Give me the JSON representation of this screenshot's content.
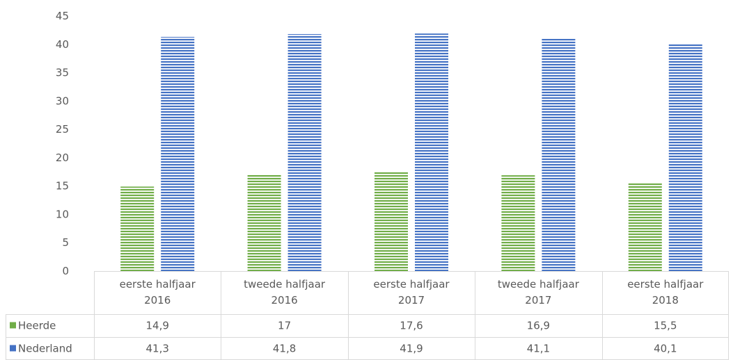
{
  "chart_data": {
    "type": "bar",
    "categories": [
      [
        "eerste halfjaar",
        "2016"
      ],
      [
        "tweede halfjaar",
        "2016"
      ],
      [
        "eerste halfjaar",
        "2017"
      ],
      [
        "tweede halfjaar",
        "2017"
      ],
      [
        "eerste halfjaar",
        "2018"
      ]
    ],
    "series": [
      {
        "name": "Heerde",
        "values": [
          14.9,
          17,
          17.6,
          16.9,
          15.5
        ],
        "labels": [
          "14,9",
          "17",
          "17,6",
          "16,9",
          "15,5"
        ],
        "color": "#70ad47"
      },
      {
        "name": "Nederland",
        "values": [
          41.3,
          41.8,
          41.9,
          41.1,
          40.1
        ],
        "labels": [
          "41,3",
          "41,8",
          "41,9",
          "41,1",
          "40,1"
        ],
        "color": "#4472c4"
      }
    ],
    "title": "",
    "xlabel": "",
    "ylabel": "",
    "ylim": [
      0,
      45
    ],
    "yticks": [
      0,
      5,
      10,
      15,
      20,
      25,
      30,
      35,
      40,
      45
    ],
    "grid": false,
    "legend": "data-table",
    "fill_pattern": "horizontal-stripes"
  }
}
